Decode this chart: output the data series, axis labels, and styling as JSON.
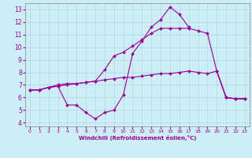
{
  "xlabel": "Windchill (Refroidissement éolien,°C)",
  "background_color": "#cdeef5",
  "grid_color": "#b0d8e8",
  "line_color": "#990099",
  "x_ticks": [
    0,
    1,
    2,
    3,
    4,
    5,
    6,
    7,
    8,
    9,
    10,
    11,
    12,
    13,
    14,
    15,
    16,
    17,
    18,
    19,
    20,
    21,
    22,
    23
  ],
  "y_ticks": [
    4,
    5,
    6,
    7,
    8,
    9,
    10,
    11,
    12,
    13
  ],
  "ylim": [
    3.7,
    13.5
  ],
  "xlim": [
    -0.5,
    23.5
  ],
  "line1_x": [
    0,
    1,
    2,
    3,
    4,
    5,
    6,
    7,
    8,
    9,
    10,
    11,
    12,
    13,
    14,
    15,
    16,
    17,
    18,
    19,
    20,
    21,
    22,
    23
  ],
  "line1_y": [
    6.6,
    6.6,
    6.8,
    6.9,
    5.4,
    5.4,
    4.8,
    4.3,
    4.8,
    5.0,
    6.2,
    9.5,
    10.5,
    11.6,
    12.2,
    13.2,
    12.6,
    11.6,
    null,
    null,
    8.1,
    6.0,
    5.9,
    5.9
  ],
  "line2_x": [
    0,
    1,
    2,
    3,
    4,
    5,
    6,
    7,
    8,
    9,
    10,
    11,
    12,
    13,
    14,
    15,
    16,
    17,
    18,
    19,
    20,
    21,
    22,
    23
  ],
  "line2_y": [
    6.6,
    6.6,
    6.8,
    6.9,
    7.0,
    7.1,
    7.2,
    7.3,
    8.2,
    9.3,
    9.6,
    10.1,
    10.6,
    11.1,
    11.5,
    11.5,
    11.5,
    11.5,
    11.3,
    11.1,
    8.1,
    6.0,
    5.9,
    5.9
  ],
  "line3_x": [
    0,
    1,
    2,
    3,
    4,
    5,
    6,
    7,
    8,
    9,
    10,
    11,
    12,
    13,
    14,
    15,
    16,
    17,
    18,
    19,
    20,
    21,
    22,
    23
  ],
  "line3_y": [
    6.6,
    6.6,
    6.8,
    7.0,
    7.1,
    7.1,
    7.2,
    7.3,
    7.4,
    7.5,
    7.6,
    7.6,
    7.7,
    7.8,
    7.9,
    7.9,
    8.0,
    8.1,
    8.0,
    7.9,
    8.1,
    6.0,
    5.9,
    5.9
  ]
}
